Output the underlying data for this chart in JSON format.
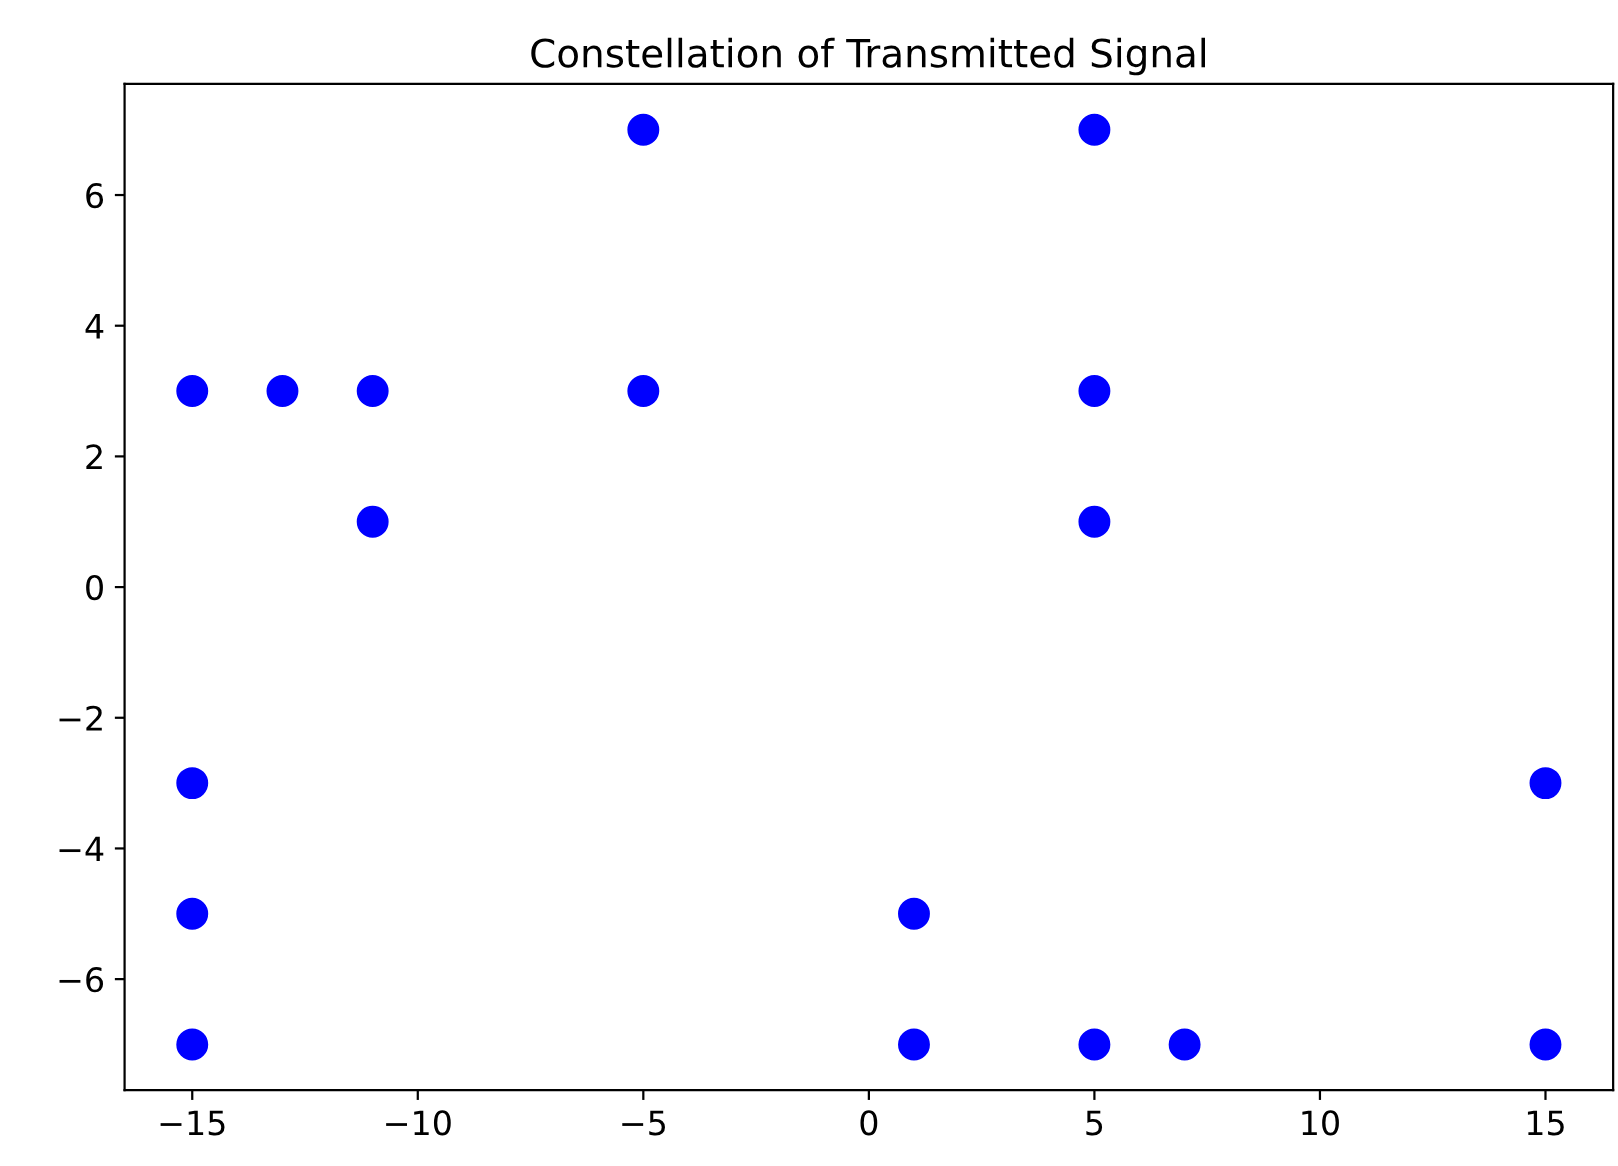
{
  "chart_data": {
    "type": "scatter",
    "title": "Constellation of Transmitted Signal",
    "x": [
      -15,
      -13,
      -11,
      -5,
      -5,
      5,
      5,
      5,
      -11,
      -15,
      -15,
      -15,
      1,
      1,
      5,
      7,
      15,
      15
    ],
    "series": [
      {
        "color": "#0000ff",
        "values": [
          3,
          3,
          3,
          7,
          3,
          7,
          3,
          1,
          1,
          -3,
          -5,
          -7,
          -5,
          -7,
          -7,
          -7,
          -3,
          -7
        ]
      }
    ],
    "xlim": [
      -16.5,
      16.5
    ],
    "ylim": [
      -7.7,
      7.7
    ],
    "xticks": [
      {
        "value": -15,
        "label": "−15"
      },
      {
        "value": -10,
        "label": "−10"
      },
      {
        "value": -5,
        "label": "−5"
      },
      0,
      5,
      10,
      15
    ],
    "yticks": [
      {
        "value": -6,
        "label": "−6"
      },
      {
        "value": -4,
        "label": "−4"
      },
      {
        "value": -2,
        "label": "−2"
      },
      0,
      2,
      4,
      6
    ],
    "marker": "circle",
    "grid": false
  }
}
